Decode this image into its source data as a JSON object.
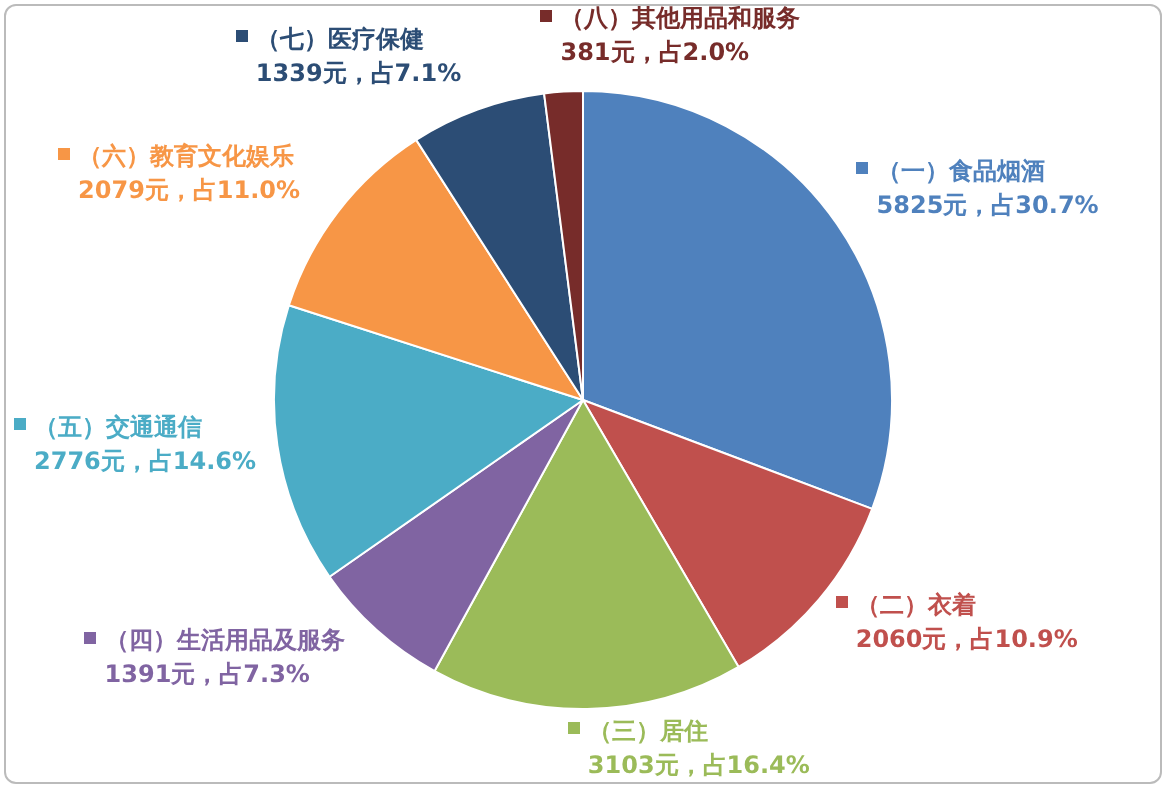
{
  "chart_data": {
    "type": "pie",
    "categories": [
      "（一）食品烟酒",
      "（二）衣着",
      "（三）居住",
      "（四）生活用品及服务",
      "（五）交通通信",
      "（六）教育文化娱乐",
      "（七）医疗保健",
      "（八）其他用品和服务"
    ],
    "values": [
      5825,
      2060,
      3103,
      1391,
      2776,
      2079,
      1339,
      381
    ],
    "value_labels": [
      "5825元，占30.7%",
      "2060元，占10.9%",
      "3103元，占16.4%",
      "1391元，占7.3%",
      "2776元，占14.6%",
      "2079元，占11.0%",
      "1339元，占7.1%",
      "381元，占2.0%"
    ],
    "colors": [
      "#4f81bd",
      "#c0504d",
      "#9bbb59",
      "#8064a2",
      "#4bacc6",
      "#f79646",
      "#2c4d75",
      "#772c2a"
    ],
    "legend": "top left"
  }
}
